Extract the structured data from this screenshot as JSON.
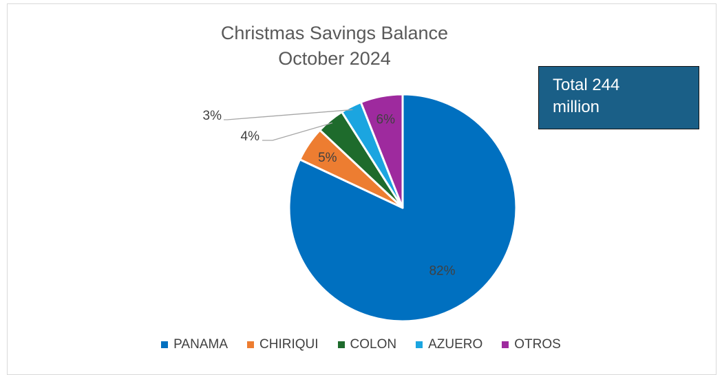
{
  "chart_data": {
    "type": "pie",
    "title": [
      "Christmas Savings Balance",
      "October 2024"
    ],
    "categories": [
      "PANAMA",
      "CHIRIQUI",
      "COLON",
      "AZUERO",
      "OTROS"
    ],
    "values": [
      82,
      5,
      4,
      3,
      6
    ],
    "labels": [
      "82%",
      "5%",
      "4%",
      "3%",
      "6%"
    ],
    "colors": [
      "#0070c0",
      "#ed7d31",
      "#1e6b2c",
      "#1ba5e0",
      "#9e2a9e"
    ],
    "legend_position": "bottom",
    "annotation": [
      "Total 244",
      "million"
    ]
  }
}
